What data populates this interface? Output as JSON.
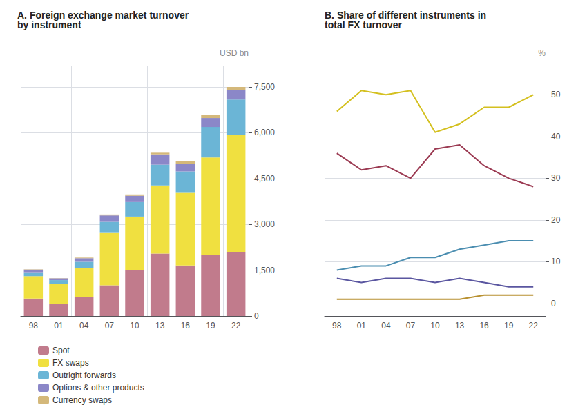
{
  "chart_data": [
    {
      "type": "bar",
      "title": "A. Foreign exchange market turnover\nby instrument",
      "y_label": "USD bn",
      "categories": [
        "98",
        "01",
        "04",
        "07",
        "10",
        "13",
        "16",
        "19",
        "22"
      ],
      "stacked": true,
      "grid": true,
      "legend": "lower left",
      "ylim": [
        0,
        8200
      ],
      "yticks": [
        0,
        {
          "value": 1500,
          "label": "1,500"
        },
        {
          "value": 3000,
          "label": "3,000"
        },
        {
          "value": 4500,
          "label": "4,500"
        },
        {
          "value": 6000,
          "label": "6,000"
        },
        {
          "value": 7500,
          "label": "7,500"
        }
      ],
      "series": [
        {
          "name": "Spot",
          "color": "#c17b8c",
          "values": [
            570,
            387,
            621,
            1005,
            1490,
            2047,
            1652,
            1987,
            2101
          ]
        },
        {
          "name": "FX swaps",
          "color": "#f0e040",
          "values": [
            734,
            656,
            944,
            1714,
            1765,
            2228,
            2378,
            3202,
            3824
          ]
        },
        {
          "name": "Outright forwards",
          "color": "#6bb5d6",
          "values": [
            128,
            130,
            209,
            362,
            475,
            680,
            700,
            999,
            1162
          ]
        },
        {
          "name": "Options & other products",
          "color": "#8b87c8",
          "values": [
            87,
            60,
            117,
            212,
            207,
            337,
            254,
            294,
            304
          ]
        },
        {
          "name": "Currency swaps",
          "color": "#d4b87a",
          "values": [
            10,
            7,
            21,
            31,
            43,
            54,
            82,
            108,
            109
          ]
        }
      ]
    },
    {
      "type": "line",
      "title": "B. Share of different instruments in\ntotal FX turnover",
      "y_label": "%",
      "categories": [
        "98",
        "01",
        "04",
        "07",
        "10",
        "13",
        "16",
        "19",
        "22"
      ],
      "grid": true,
      "ylim": [
        -3,
        57
      ],
      "yticks": [
        0,
        10,
        20,
        30,
        40,
        50
      ],
      "series": [
        {
          "color": "#9b3a52",
          "values": [
            36,
            32,
            33,
            30,
            37,
            38,
            33,
            30,
            28
          ]
        },
        {
          "color": "#d4c020",
          "values": [
            46,
            51,
            50,
            51,
            41,
            43,
            47,
            47,
            50
          ]
        },
        {
          "color": "#4a8db0",
          "values": [
            8,
            9,
            9,
            11,
            11,
            13,
            14,
            15,
            15
          ]
        },
        {
          "color": "#5a56a0",
          "values": [
            6,
            5,
            6,
            6,
            5,
            6,
            5,
            4,
            4
          ]
        },
        {
          "color": "#b89030",
          "values": [
            1,
            1,
            1,
            1,
            1,
            1,
            2,
            2,
            2
          ]
        }
      ]
    }
  ]
}
